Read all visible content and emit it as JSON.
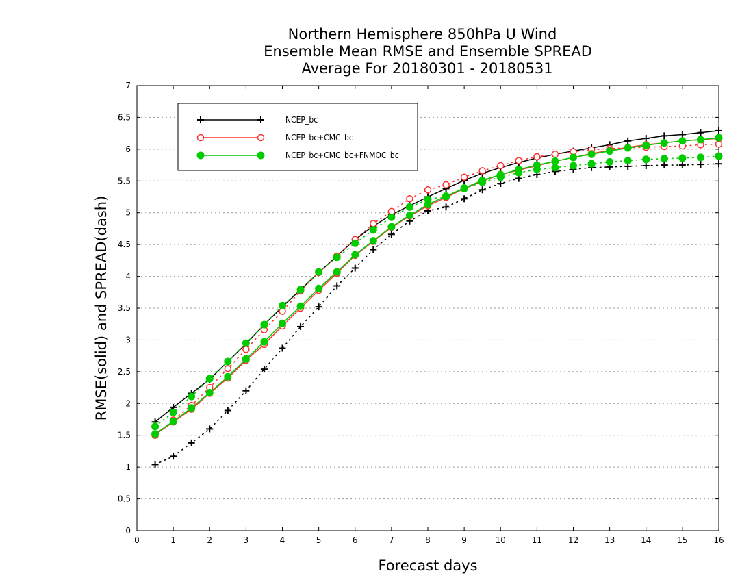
{
  "chart_data": {
    "type": "line",
    "title_lines": [
      "Northern Hemisphere 850hPa U Wind",
      "Ensemble Mean RMSE and Ensemble SPREAD",
      "Average For 20180301 - 20180531"
    ],
    "xlabel": "Forecast days",
    "ylabel": "RMSE(solid) and SPREAD(dash)",
    "xlim": [
      0,
      16
    ],
    "ylim": [
      0,
      7
    ],
    "xticks": [
      "0",
      "1",
      "2",
      "3",
      "4",
      "5",
      "6",
      "7",
      "8",
      "9",
      "10",
      "11",
      "12",
      "13",
      "14",
      "15",
      "16"
    ],
    "yticks": [
      "0",
      "0.5",
      "1",
      "1.5",
      "2",
      "2.5",
      "3",
      "3.5",
      "4",
      "4.5",
      "5",
      "5.5",
      "6",
      "6.5",
      "7"
    ],
    "grid": "horizontal dotted",
    "legend_position": "top-left",
    "x": [
      0.5,
      1,
      1.5,
      2,
      2.5,
      3,
      3.5,
      4,
      4.5,
      5,
      5.5,
      6,
      6.5,
      7,
      7.5,
      8,
      8.5,
      9,
      9.5,
      10,
      10.5,
      11,
      11.5,
      12,
      12.5,
      13,
      13.5,
      14,
      14.5,
      15,
      15.5,
      16
    ],
    "series": [
      {
        "name": "NCEP_bc",
        "color": "#000000",
        "marker": "plus",
        "rmse": [
          1.71,
          1.94,
          2.16,
          2.38,
          2.66,
          2.94,
          3.24,
          3.52,
          3.79,
          4.06,
          4.32,
          4.58,
          4.79,
          4.97,
          5.11,
          5.25,
          5.38,
          5.51,
          5.62,
          5.71,
          5.79,
          5.86,
          5.92,
          5.97,
          6.02,
          6.07,
          6.13,
          6.17,
          6.21,
          6.23,
          6.26,
          6.29
        ],
        "spread": [
          1.04,
          1.17,
          1.38,
          1.6,
          1.89,
          2.2,
          2.54,
          2.87,
          3.21,
          3.52,
          3.85,
          4.13,
          4.42,
          4.66,
          4.87,
          5.03,
          5.09,
          5.22,
          5.36,
          5.46,
          5.54,
          5.6,
          5.65,
          5.68,
          5.71,
          5.72,
          5.73,
          5.74,
          5.75,
          5.75,
          5.76,
          5.77
        ]
      },
      {
        "name": "NCEP_bc+CMC_bc",
        "color": "#ff3030",
        "marker": "open-circle",
        "rmse": [
          1.51,
          1.71,
          1.91,
          2.16,
          2.4,
          2.68,
          2.93,
          3.22,
          3.5,
          3.78,
          4.05,
          4.33,
          4.55,
          4.77,
          4.95,
          5.11,
          5.24,
          5.38,
          5.5,
          5.6,
          5.67,
          5.74,
          5.81,
          5.87,
          5.93,
          5.98,
          6.03,
          6.07,
          6.1,
          6.13,
          6.15,
          6.17
        ],
        "spread": [
          1.5,
          1.74,
          1.97,
          2.25,
          2.55,
          2.85,
          3.16,
          3.45,
          3.77,
          4.06,
          4.32,
          4.58,
          4.83,
          5.02,
          5.22,
          5.36,
          5.44,
          5.56,
          5.66,
          5.74,
          5.82,
          5.88,
          5.92,
          5.96,
          5.99,
          6.01,
          6.02,
          6.03,
          6.04,
          6.05,
          6.07,
          6.08
        ]
      },
      {
        "name": "NCEP_bc+CMC_bc+FNMOC_bc",
        "color": "#00cc00",
        "marker": "filled-circle",
        "rmse": [
          1.52,
          1.72,
          1.93,
          2.17,
          2.42,
          2.7,
          2.97,
          3.26,
          3.53,
          3.81,
          4.07,
          4.34,
          4.56,
          4.78,
          4.96,
          5.13,
          5.26,
          5.39,
          5.51,
          5.6,
          5.68,
          5.75,
          5.81,
          5.87,
          5.92,
          5.97,
          6.02,
          6.06,
          6.1,
          6.13,
          6.15,
          6.18
        ],
        "spread": [
          1.64,
          1.86,
          2.11,
          2.39,
          2.66,
          2.95,
          3.24,
          3.54,
          3.79,
          4.07,
          4.3,
          4.52,
          4.73,
          4.93,
          5.09,
          5.21,
          5.26,
          5.38,
          5.48,
          5.56,
          5.63,
          5.68,
          5.71,
          5.74,
          5.77,
          5.8,
          5.82,
          5.84,
          5.85,
          5.86,
          5.87,
          5.89
        ]
      }
    ]
  }
}
